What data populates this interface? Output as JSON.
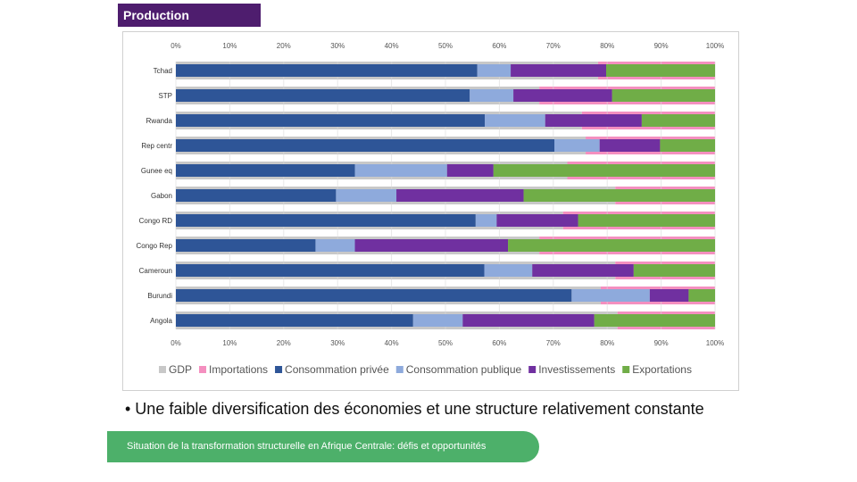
{
  "header": {
    "title": "Production"
  },
  "bullet": "•  Une faible diversification des économies et une structure relativement constante",
  "footer": "Situation de la transformation structurelle en Afrique Centrale:  défis et opportunités",
  "chart_data": {
    "type": "bar",
    "orientation": "horizontal",
    "stacked": "100%",
    "xlim": [
      0,
      100
    ],
    "ticks": [
      "0%",
      "10%",
      "20%",
      "30%",
      "40%",
      "50%",
      "60%",
      "70%",
      "80%",
      "90%",
      "100%"
    ],
    "legend_position": "bottom",
    "categories": [
      "Tchad",
      "STP",
      "Rwanda",
      "Rep centr",
      "Gunee eq",
      "Gabon",
      "Congo RD",
      "Congo Rep",
      "Cameroun",
      "Burundi",
      "Angola"
    ],
    "background_series": [
      {
        "name": "GDP",
        "color": "#c8c8c8",
        "values": [
          78.3,
          67.4,
          75.3,
          76.0,
          72.6,
          81.5,
          71.8,
          67.4,
          81.5,
          78.8,
          81.9
        ]
      },
      {
        "name": "Importations",
        "color": "#f48fbf",
        "values": [
          21.7,
          32.6,
          24.7,
          24.0,
          27.4,
          18.5,
          28.2,
          32.6,
          18.5,
          21.2,
          18.1
        ]
      }
    ],
    "series": [
      {
        "name": "Consommation privée",
        "color": "#2e5597",
        "values": [
          55.9,
          54.5,
          57.3,
          70.2,
          33.2,
          29.7,
          55.6,
          25.9,
          57.2,
          73.4,
          44.0
        ]
      },
      {
        "name": "Consommation publique",
        "color": "#8eaadc",
        "values": [
          6.2,
          8.1,
          11.2,
          8.4,
          17.1,
          11.2,
          3.9,
          7.3,
          8.9,
          14.5,
          9.2
        ]
      },
      {
        "name": "Investissements",
        "color": "#7030a0",
        "values": [
          17.7,
          18.3,
          17.9,
          11.2,
          8.6,
          23.6,
          15.1,
          28.4,
          18.8,
          7.2,
          24.4
        ]
      },
      {
        "name": "Exportations",
        "color": "#70ad47",
        "values": [
          20.2,
          19.1,
          13.6,
          10.2,
          41.1,
          35.5,
          25.4,
          38.4,
          15.1,
          4.9,
          22.4
        ]
      }
    ]
  }
}
